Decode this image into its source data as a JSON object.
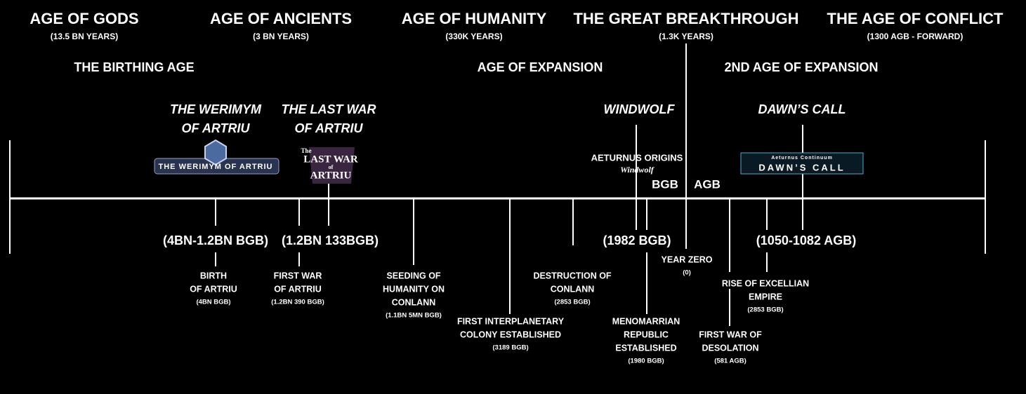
{
  "ages": [
    {
      "title": "AGE OF GODS",
      "span": "(13.5 BN YEARS)"
    },
    {
      "title": "AGE OF ANCIENTS",
      "span": "(3 BN YEARS)"
    },
    {
      "title": "AGE OF HUMANITY",
      "span": "(330K YEARS)"
    },
    {
      "title": "THE GREAT BREAKTHROUGH",
      "span": "(1.3K YEARS)"
    },
    {
      "title": "THE AGE OF CONFLICT",
      "span": "(1300 AGB - FORWARD)"
    }
  ],
  "sub_ages": [
    "THE BIRTHING AGE",
    "AGE OF EXPANSION",
    "2ND AGE OF EXPANSION"
  ],
  "games": [
    {
      "title": [
        "THE WERIMYM",
        "OF ARTRIU"
      ],
      "logo": [
        "THE WERIMYM OF ARTRIU"
      ]
    },
    {
      "title": [
        "THE LAST WAR",
        "OF ARTRIU"
      ],
      "logo": [
        "The",
        "LAST WAR",
        "of",
        "ARTRIU"
      ]
    },
    {
      "title": [
        "WINDWOLF"
      ],
      "logo": [
        "AETURNUS ORIGINS",
        "Windwolf"
      ]
    },
    {
      "title": [
        "DAWN’S CALL"
      ],
      "logo": [
        "Aeturnus Continuum",
        "DAWN’S CALL"
      ]
    }
  ],
  "ranges": [
    "(4BN-1.2BN BGB)",
    "(1.2BN 133BGB)",
    "(1982 BGB)",
    "(1050-1082 AGB)"
  ],
  "era_labels": [
    "BGB",
    "AGB"
  ],
  "events": [
    {
      "lines": [
        "BIRTH",
        "OF ARTRIU"
      ],
      "date": "(4BN BGB)"
    },
    {
      "lines": [
        "FIRST WAR",
        "OF ARTRIU"
      ],
      "date": "(1.2BN 390 BGB)"
    },
    {
      "lines": [
        "SEEDING OF",
        "HUMANITY ON",
        "CONLANN"
      ],
      "date": "(1.1BN 5MN BGB)"
    },
    {
      "lines": [
        "FIRST INTERPLANETARY",
        "COLONY ESTABLISHED"
      ],
      "date": "(3189 BGB)"
    },
    {
      "lines": [
        "DESTRUCTION OF",
        "CONLANN"
      ],
      "date": "(2853 BGB)"
    },
    {
      "lines": [
        "MENOMARRIAN",
        "REPUBLIC",
        "ESTABLISHED"
      ],
      "date": "(1980 BGB)"
    },
    {
      "lines": [
        "YEAR ZERO"
      ],
      "date": "(0)"
    },
    {
      "lines": [
        "FIRST WAR OF",
        "DESOLATION"
      ],
      "date": "(581 AGB)"
    },
    {
      "lines": [
        "RISE OF EXCELLIAN",
        "EMPIRE"
      ],
      "date": "(2853 BGB)"
    }
  ]
}
